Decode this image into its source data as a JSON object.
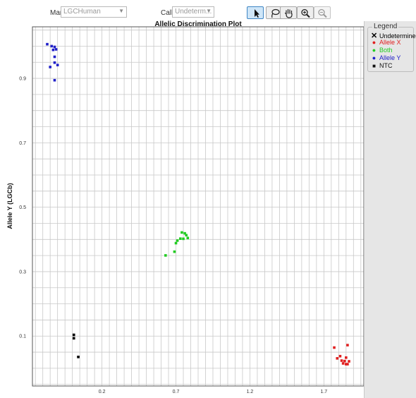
{
  "toolbar": {
    "marker_label": "Marker:",
    "marker_value": "LGCHuman",
    "call_label": "Call:",
    "call_value": "Undeterm...",
    "tools": [
      "pointer-icon",
      "lasso-icon",
      "pan-hand-icon",
      "zoom-in-icon",
      "zoom-out-icon"
    ]
  },
  "legend": {
    "title": "Legend",
    "items": [
      {
        "label": "Undetermined",
        "color": "#000000",
        "marker": "x"
      },
      {
        "label": "Allele X",
        "color": "#e02020",
        "marker": "dot"
      },
      {
        "label": "Both",
        "color": "#22cc22",
        "marker": "dot"
      },
      {
        "label": "Allele Y",
        "color": "#2020c8",
        "marker": "dot"
      },
      {
        "label": "NTC",
        "color": "#000000",
        "marker": "square"
      }
    ]
  },
  "chart_data": {
    "type": "scatter",
    "title": "Allelic Discrimination Plot",
    "ylabel": "Allele Y (LGCb)",
    "xlabel": "",
    "xlim": [
      -0.27,
      1.97
    ],
    "ylim": [
      -0.055,
      1.06
    ],
    "grid": true,
    "x_ticks": [
      0.2,
      0.7,
      1.2,
      1.7
    ],
    "y_ticks": [
      0.1,
      0.3,
      0.5,
      0.7,
      0.9
    ],
    "series": [
      {
        "name": "Allele X",
        "color": "#e02020",
        "marker": "square",
        "points": [
          [
            1.77,
            0.0643
          ],
          [
            1.79,
            0.0308
          ],
          [
            1.81,
            0.0376
          ],
          [
            1.82,
            0.0238
          ],
          [
            1.83,
            0.0151
          ],
          [
            1.84,
            0.0225
          ],
          [
            1.85,
            0.0331
          ],
          [
            1.85,
            0.0128
          ],
          [
            1.86,
            0.0719
          ],
          [
            1.86,
            0.0128
          ],
          [
            1.87,
            0.0216
          ]
        ]
      },
      {
        "name": "Both",
        "color": "#22cc22",
        "marker": "square",
        "points": [
          [
            0.63,
            0.3504
          ],
          [
            0.69,
            0.3619
          ],
          [
            0.7,
            0.3885
          ],
          [
            0.71,
            0.3964
          ],
          [
            0.73,
            0.4024
          ],
          [
            0.75,
            0.402
          ],
          [
            0.74,
            0.4216
          ],
          [
            0.76,
            0.4189
          ],
          [
            0.77,
            0.4132
          ],
          [
            0.78,
            0.4045
          ]
        ]
      },
      {
        "name": "Allele Y",
        "color": "#2020c8",
        "marker": "square",
        "points": [
          [
            -0.17,
            1.006
          ],
          [
            -0.14,
            1.0
          ],
          [
            -0.13,
            0.9884
          ],
          [
            -0.12,
            0.9976
          ],
          [
            -0.11,
            0.99
          ],
          [
            -0.12,
            0.9669
          ],
          [
            -0.12,
            0.9488
          ],
          [
            -0.1,
            0.9414
          ],
          [
            -0.15,
            0.9352
          ],
          [
            -0.12,
            0.8942
          ]
        ]
      },
      {
        "name": "NTC",
        "color": "#000000",
        "marker": "square",
        "points": [
          [
            0.01,
            0.1038
          ],
          [
            0.01,
            0.0932
          ],
          [
            0.04,
            0.0352
          ]
        ]
      }
    ]
  }
}
